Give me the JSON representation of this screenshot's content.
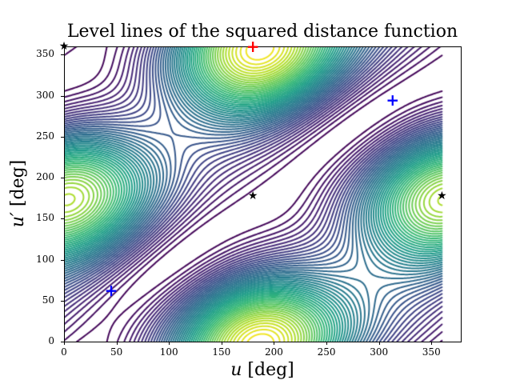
{
  "chart_data": {
    "type": "contour",
    "title": "Level lines of the squared distance function",
    "xlabel": "u [deg]",
    "ylabel": "u' [deg]",
    "xlim": [
      0,
      378
    ],
    "ylim": [
      0,
      360
    ],
    "xticks": [
      0,
      50,
      100,
      150,
      200,
      250,
      300,
      350
    ],
    "yticks": [
      0,
      50,
      100,
      150,
      200,
      250,
      300,
      350
    ],
    "grid": false,
    "colormap": "viridis",
    "domain_u": [
      0,
      360
    ],
    "domain_up": [
      0,
      360
    ],
    "n_levels": 50,
    "features": {
      "maxima": [
        [
          180,
          360
        ],
        [
          205,
          5
        ]
      ],
      "minima": [
        [
          45,
          62
        ],
        [
          313,
          295
        ]
      ],
      "saddles": [
        [
          180,
          178
        ],
        [
          360,
          178
        ]
      ]
    },
    "markers": [
      {
        "u": 45,
        "up": 62,
        "symbol": "+",
        "color": "#0000ff",
        "kind": "minimum"
      },
      {
        "u": 313,
        "up": 295,
        "symbol": "+",
        "color": "#0000ff",
        "kind": "minimum"
      },
      {
        "u": 180,
        "up": 178,
        "symbol": "★",
        "color": "#000000",
        "kind": "saddle"
      },
      {
        "u": 360,
        "up": 178,
        "symbol": "★",
        "color": "#000000",
        "kind": "saddle"
      },
      {
        "u": 180,
        "up": 360,
        "symbol": "+",
        "color": "#ff0000",
        "kind": "maximum"
      },
      {
        "u": 0,
        "up": 360,
        "symbol": "★",
        "color": "#000000",
        "kind": "saddle"
      }
    ],
    "model": {
      "ellipse1": {
        "a": 1.0,
        "b": 0.55
      },
      "ellipse2": {
        "a": 1.05,
        "b": 0.6,
        "dx": 0.05,
        "dy": 0.08,
        "rot_deg": 18
      }
    }
  }
}
